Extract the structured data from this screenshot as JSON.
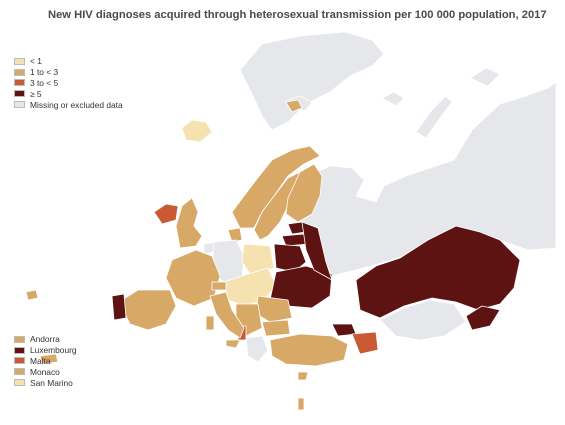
{
  "title": "New HIV diagnoses acquired through heterosexual transmission per 100 000 population, 2017",
  "colors": {
    "lt1": "#f6e2b0",
    "1to3": "#d8a866",
    "3to5": "#c95a34",
    "ge5": "#5e1313",
    "missing": "#e6e7ea",
    "outline": "#ffffff",
    "sea": "#ffffff"
  },
  "legend": [
    {
      "label": "< 1",
      "color": "#f6e2b0"
    },
    {
      "label": "1 to < 3",
      "color": "#d8a866"
    },
    {
      "label": "3 to < 5",
      "color": "#c95a34"
    },
    {
      "label": "≥ 5",
      "color": "#5e1313"
    },
    {
      "label": "Missing or excluded data",
      "color": "#e6e7ea"
    }
  ],
  "small_countries": [
    {
      "label": "Andorra",
      "color": "#d8a866"
    },
    {
      "label": "Luxembourg",
      "color": "#5e1313"
    },
    {
      "label": "Malta",
      "color": "#c95a34"
    },
    {
      "label": "Monaco",
      "color": "#d8a866"
    },
    {
      "label": "San Marino",
      "color": "#f6e2b0"
    }
  ]
}
